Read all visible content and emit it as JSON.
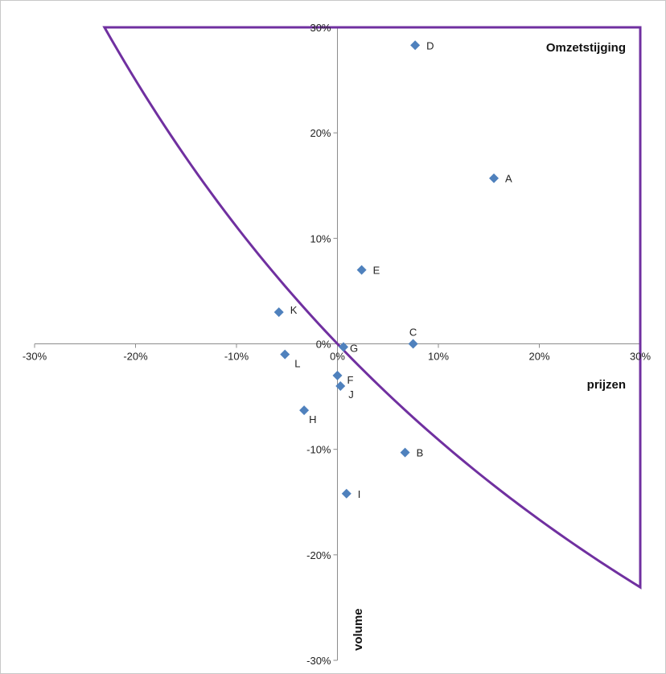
{
  "chart_data": {
    "type": "scatter",
    "title": "",
    "xlabel": "prijzen",
    "ylabel": "volume",
    "region_label": "Omzetstijging",
    "xlim": [
      -0.3,
      0.3
    ],
    "ylim": [
      -0.3,
      0.3
    ],
    "x_tick_values": [
      -0.3,
      -0.2,
      -0.1,
      0.0,
      0.1,
      0.2,
      0.3
    ],
    "x_tick_labels": [
      "-30%",
      "-20%",
      "-10%",
      "0%",
      "10%",
      "20%",
      "30%"
    ],
    "y_tick_values": [
      0.3,
      0.2,
      0.1,
      0.0,
      -0.1,
      -0.2,
      -0.3
    ],
    "y_tick_labels": [
      "30%",
      "20%",
      "10%",
      "0%",
      "-10%",
      "-20%",
      "-30%"
    ],
    "grid": false,
    "legend": "none",
    "marker_color": "#4f81bd",
    "boundary_color": "#7030a0",
    "points": [
      {
        "label": "A",
        "x": 0.155,
        "y": 0.157
      },
      {
        "label": "B",
        "x": 0.067,
        "y": -0.103
      },
      {
        "label": "C",
        "x": 0.075,
        "y": 0.0
      },
      {
        "label": "D",
        "x": 0.077,
        "y": 0.283
      },
      {
        "label": "E",
        "x": 0.024,
        "y": 0.07
      },
      {
        "label": "F",
        "x": 0.0,
        "y": -0.03
      },
      {
        "label": "G",
        "x": 0.006,
        "y": -0.003
      },
      {
        "label": "H",
        "x": -0.033,
        "y": -0.063
      },
      {
        "label": "I",
        "x": 0.009,
        "y": -0.142
      },
      {
        "label": "J",
        "x": 0.003,
        "y": -0.04
      },
      {
        "label": "K",
        "x": -0.058,
        "y": 0.03
      },
      {
        "label": "L",
        "x": -0.052,
        "y": -0.01
      }
    ],
    "boundary": {
      "description": "revenue-neutral curve (1+x)(1+y)=1 closing the revenue increase region",
      "top_y": 0.3,
      "right_x": 0.3
    }
  }
}
